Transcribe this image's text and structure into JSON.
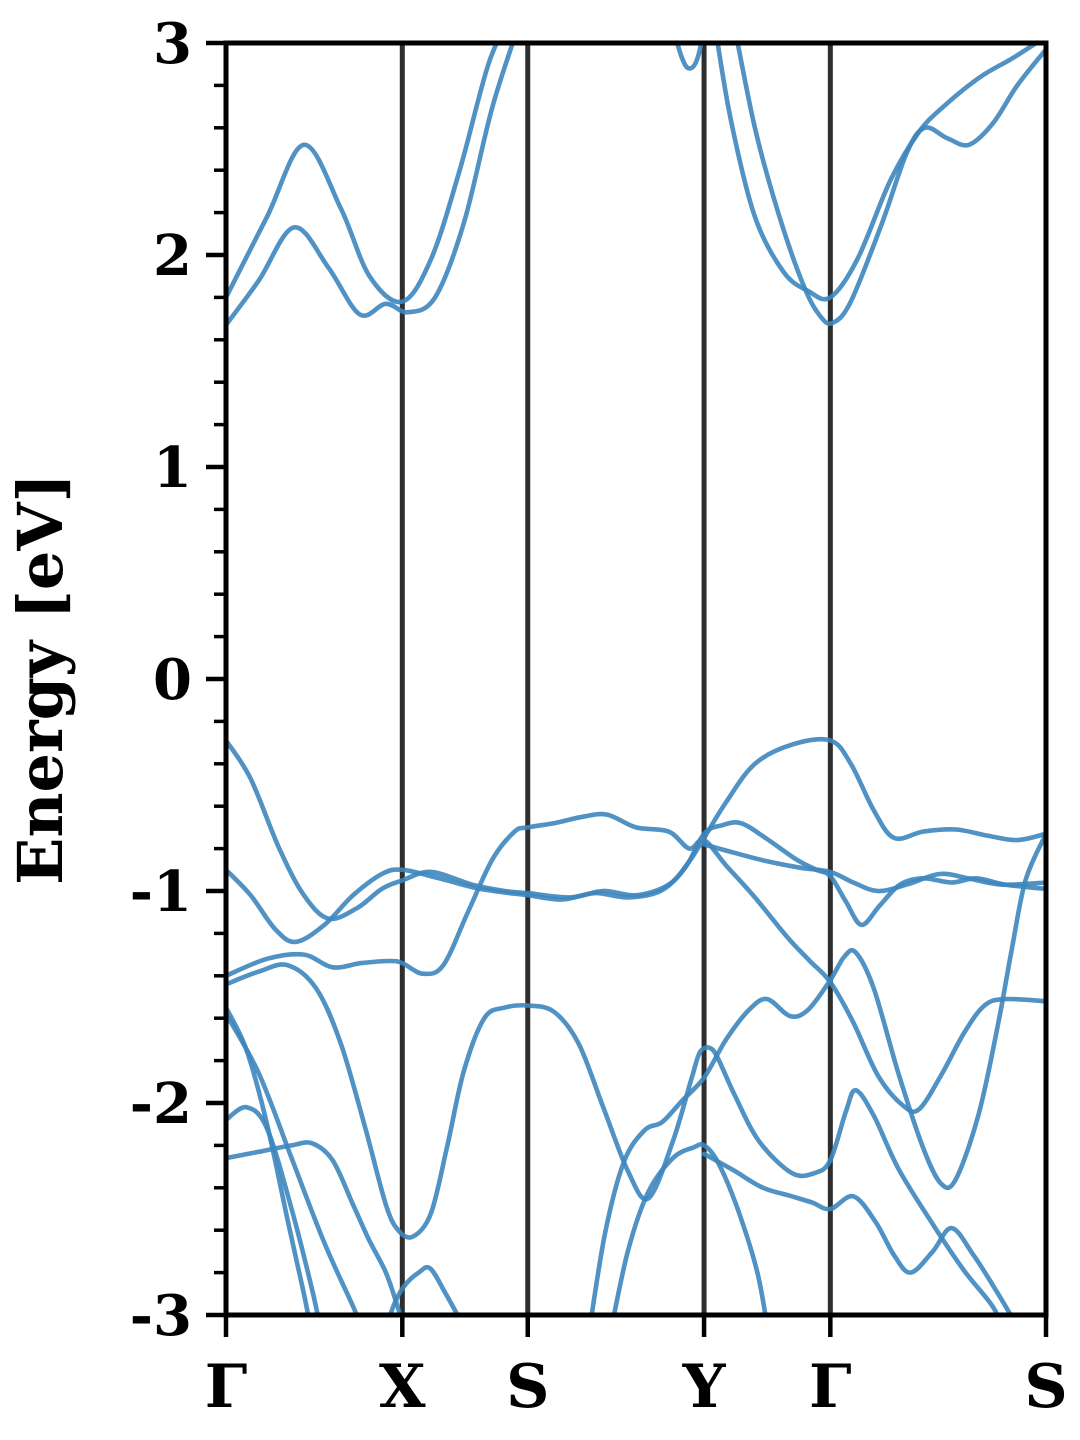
{
  "chart_data": {
    "type": "line",
    "title": "",
    "subtitle": "",
    "ylabel": "Energy [eV]",
    "xlabel": "",
    "ylim": [
      -3,
      3
    ],
    "ytick_values": [
      3,
      2,
      1,
      0,
      -1,
      -2,
      -3
    ],
    "ytick_labels": [
      "3",
      "2",
      "1",
      "0",
      "-1",
      "-2",
      "-3"
    ],
    "yminor_step": 0.2,
    "grid": "off",
    "legend": "none",
    "xticks": [
      {
        "label": "Γ",
        "u": 0.0
      },
      {
        "label": "X",
        "u": 0.215
      },
      {
        "label": "S",
        "u": 0.368
      },
      {
        "label": "Y",
        "u": 0.583
      },
      {
        "label": "Γ",
        "u": 0.737
      },
      {
        "label": "S",
        "u": 1.0
      }
    ],
    "separators_u": [
      0.215,
      0.368,
      0.583,
      0.737
    ],
    "colors": {
      "band": "#3d86be",
      "separator": "#2e2e2e",
      "axis": "#000000",
      "background": "#ffffff"
    },
    "band_opacity": 0.9,
    "description": "Electronic band structure along Γ-X-S-Y-Γ-S; energies in eV relative to Fermi level; band gap ~1.95 eV (valence max -0.29 eV at Γ, conduction min ~1.67 eV at Γ).",
    "bands": [
      {
        "name": "cond-1",
        "points": [
          [
            0,
            1.8
          ],
          [
            0.05,
            2.18
          ],
          [
            0.095,
            2.52
          ],
          [
            0.14,
            2.22
          ],
          [
            0.175,
            1.9
          ],
          [
            0.215,
            1.78
          ],
          [
            0.25,
            1.98
          ],
          [
            0.285,
            2.4
          ],
          [
            0.32,
            2.9
          ],
          [
            0.348,
            3.14
          ]
        ]
      },
      {
        "name": "cond-2",
        "points": [
          [
            0,
            1.67
          ],
          [
            0.04,
            1.88
          ],
          [
            0.083,
            2.13
          ],
          [
            0.125,
            1.94
          ],
          [
            0.163,
            1.72
          ],
          [
            0.195,
            1.77
          ],
          [
            0.222,
            1.73
          ],
          [
            0.255,
            1.8
          ],
          [
            0.29,
            2.15
          ],
          [
            0.325,
            2.7
          ],
          [
            0.362,
            3.14
          ]
        ]
      },
      {
        "name": "cond-dip-Y",
        "points": [
          [
            0.54,
            3.14
          ],
          [
            0.556,
            2.93
          ],
          [
            0.566,
            2.88
          ],
          [
            0.576,
            2.94
          ],
          [
            0.586,
            3.14
          ]
        ]
      },
      {
        "name": "cond-3",
        "points": [
          [
            0.594,
            3.14
          ],
          [
            0.615,
            2.65
          ],
          [
            0.645,
            2.18
          ],
          [
            0.68,
            1.92
          ],
          [
            0.71,
            1.83
          ],
          [
            0.737,
            1.8
          ],
          [
            0.77,
            1.98
          ],
          [
            0.81,
            2.35
          ],
          [
            0.845,
            2.58
          ],
          [
            0.875,
            2.7
          ],
          [
            0.92,
            2.84
          ],
          [
            0.96,
            2.93
          ],
          [
            1.0,
            3.03
          ]
        ]
      },
      {
        "name": "cond-4",
        "points": [
          [
            0.617,
            3.14
          ],
          [
            0.645,
            2.6
          ],
          [
            0.675,
            2.18
          ],
          [
            0.705,
            1.85
          ],
          [
            0.725,
            1.71
          ],
          [
            0.74,
            1.68
          ],
          [
            0.762,
            1.78
          ],
          [
            0.8,
            2.15
          ],
          [
            0.83,
            2.48
          ],
          [
            0.852,
            2.6
          ],
          [
            0.88,
            2.55
          ],
          [
            0.906,
            2.52
          ],
          [
            0.935,
            2.62
          ],
          [
            0.965,
            2.8
          ],
          [
            1.0,
            2.97
          ]
        ]
      },
      {
        "name": "val-1",
        "points": [
          [
            0,
            -0.29
          ],
          [
            0.03,
            -0.47
          ],
          [
            0.065,
            -0.8
          ],
          [
            0.095,
            -1.02
          ],
          [
            0.125,
            -1.13
          ],
          [
            0.16,
            -1.08
          ],
          [
            0.19,
            -0.99
          ],
          [
            0.215,
            -0.95
          ],
          [
            0.25,
            -0.91
          ],
          [
            0.3,
            -0.97
          ],
          [
            0.34,
            -1.0
          ],
          [
            0.368,
            -1.01
          ],
          [
            0.42,
            -1.03
          ],
          [
            0.46,
            -1.0
          ],
          [
            0.5,
            -1.02
          ],
          [
            0.54,
            -0.97
          ],
          [
            0.565,
            -0.86
          ],
          [
            0.583,
            -0.75
          ],
          [
            0.61,
            -0.58
          ],
          [
            0.645,
            -0.4
          ],
          [
            0.69,
            -0.31
          ],
          [
            0.737,
            -0.29
          ],
          [
            0.762,
            -0.4
          ],
          [
            0.79,
            -0.62
          ],
          [
            0.815,
            -0.75
          ],
          [
            0.85,
            -0.72
          ],
          [
            0.89,
            -0.71
          ],
          [
            0.93,
            -0.74
          ],
          [
            0.965,
            -0.76
          ],
          [
            1.0,
            -0.73
          ]
        ]
      },
      {
        "name": "val-2",
        "points": [
          [
            0,
            -0.9
          ],
          [
            0.03,
            -1.02
          ],
          [
            0.06,
            -1.18
          ],
          [
            0.085,
            -1.24
          ],
          [
            0.12,
            -1.16
          ],
          [
            0.155,
            -1.02
          ],
          [
            0.19,
            -0.92
          ],
          [
            0.215,
            -0.9
          ],
          [
            0.26,
            -0.94
          ],
          [
            0.31,
            -0.99
          ],
          [
            0.368,
            -1.02
          ],
          [
            0.41,
            -1.04
          ],
          [
            0.45,
            -1.01
          ],
          [
            0.49,
            -1.03
          ],
          [
            0.53,
            -1.0
          ],
          [
            0.56,
            -0.89
          ],
          [
            0.583,
            -0.73
          ],
          [
            0.605,
            -0.69
          ],
          [
            0.628,
            -0.68
          ],
          [
            0.658,
            -0.75
          ],
          [
            0.695,
            -0.85
          ],
          [
            0.72,
            -0.9
          ],
          [
            0.737,
            -0.93
          ],
          [
            0.756,
            -1.05
          ],
          [
            0.775,
            -1.16
          ],
          [
            0.797,
            -1.07
          ],
          [
            0.822,
            -0.97
          ],
          [
            0.85,
            -0.94
          ],
          [
            0.885,
            -0.96
          ],
          [
            0.915,
            -0.94
          ],
          [
            0.95,
            -0.97
          ],
          [
            1.0,
            -0.99
          ]
        ]
      },
      {
        "name": "val-3",
        "points": [
          [
            0.583,
            -0.78
          ],
          [
            0.62,
            -0.82
          ],
          [
            0.66,
            -0.86
          ],
          [
            0.7,
            -0.89
          ],
          [
            0.737,
            -0.91
          ],
          [
            0.765,
            -0.96
          ],
          [
            0.795,
            -1.0
          ],
          [
            0.83,
            -0.97
          ],
          [
            0.87,
            -0.92
          ],
          [
            0.905,
            -0.94
          ],
          [
            0.945,
            -0.97
          ],
          [
            1.0,
            -0.96
          ]
        ]
      },
      {
        "name": "val-4",
        "points": [
          [
            0,
            -1.4
          ],
          [
            0.05,
            -1.32
          ],
          [
            0.095,
            -1.3
          ],
          [
            0.13,
            -1.36
          ],
          [
            0.165,
            -1.34
          ],
          [
            0.2,
            -1.33
          ],
          [
            0.215,
            -1.34
          ],
          [
            0.24,
            -1.39
          ],
          [
            0.265,
            -1.35
          ],
          [
            0.295,
            -1.1
          ],
          [
            0.325,
            -0.85
          ],
          [
            0.352,
            -0.72
          ],
          [
            0.368,
            -0.7
          ],
          [
            0.4,
            -0.68
          ],
          [
            0.435,
            -0.65
          ],
          [
            0.465,
            -0.64
          ],
          [
            0.5,
            -0.7
          ],
          [
            0.54,
            -0.72
          ],
          [
            0.565,
            -0.8
          ],
          [
            0.583,
            -0.76
          ],
          [
            0.61,
            -0.88
          ],
          [
            0.645,
            -1.03
          ],
          [
            0.685,
            -1.22
          ],
          [
            0.712,
            -1.33
          ],
          [
            0.737,
            -1.43
          ],
          [
            0.765,
            -1.62
          ],
          [
            0.795,
            -1.87
          ],
          [
            0.825,
            -2.01
          ],
          [
            0.845,
            -2.03
          ],
          [
            0.872,
            -1.87
          ],
          [
            0.9,
            -1.67
          ],
          [
            0.925,
            -1.54
          ],
          [
            0.95,
            -1.51
          ],
          [
            1.0,
            -1.52
          ]
        ]
      },
      {
        "name": "val-5",
        "points": [
          [
            0,
            -1.44
          ],
          [
            0.04,
            -1.38
          ],
          [
            0.075,
            -1.35
          ],
          [
            0.11,
            -1.46
          ],
          [
            0.14,
            -1.72
          ],
          [
            0.17,
            -2.12
          ],
          [
            0.195,
            -2.48
          ],
          [
            0.21,
            -2.6
          ],
          [
            0.228,
            -2.63
          ],
          [
            0.25,
            -2.52
          ],
          [
            0.27,
            -2.2
          ],
          [
            0.29,
            -1.85
          ],
          [
            0.315,
            -1.6
          ],
          [
            0.34,
            -1.55
          ],
          [
            0.368,
            -1.54
          ],
          [
            0.4,
            -1.57
          ],
          [
            0.43,
            -1.72
          ],
          [
            0.46,
            -2.02
          ],
          [
            0.49,
            -2.32
          ],
          [
            0.515,
            -2.45
          ],
          [
            0.545,
            -2.18
          ],
          [
            0.568,
            -1.88
          ],
          [
            0.578,
            -1.76
          ],
          [
            0.59,
            -1.74
          ],
          [
            0.6,
            -1.79
          ],
          [
            0.62,
            -1.96
          ],
          [
            0.65,
            -2.18
          ],
          [
            0.69,
            -2.33
          ],
          [
            0.718,
            -2.33
          ],
          [
            0.737,
            -2.27
          ],
          [
            0.756,
            -2.04
          ],
          [
            0.768,
            -1.94
          ],
          [
            0.79,
            -2.06
          ],
          [
            0.82,
            -2.31
          ],
          [
            0.86,
            -2.56
          ],
          [
            0.9,
            -2.79
          ],
          [
            0.935,
            -2.96
          ],
          [
            0.952,
            -3.1
          ]
        ]
      },
      {
        "name": "val-6",
        "points": [
          [
            0.442,
            -3.1
          ],
          [
            0.462,
            -2.62
          ],
          [
            0.485,
            -2.28
          ],
          [
            0.51,
            -2.13
          ],
          [
            0.532,
            -2.09
          ],
          [
            0.556,
            -1.99
          ],
          [
            0.583,
            -1.88
          ],
          [
            0.61,
            -1.7
          ],
          [
            0.638,
            -1.56
          ],
          [
            0.66,
            -1.51
          ],
          [
            0.688,
            -1.59
          ],
          [
            0.71,
            -1.56
          ],
          [
            0.737,
            -1.42
          ],
          [
            0.754,
            -1.31
          ],
          [
            0.768,
            -1.29
          ],
          [
            0.79,
            -1.46
          ],
          [
            0.82,
            -1.86
          ],
          [
            0.85,
            -2.21
          ],
          [
            0.872,
            -2.38
          ],
          [
            0.89,
            -2.36
          ],
          [
            0.918,
            -2.05
          ],
          [
            0.942,
            -1.62
          ],
          [
            0.958,
            -1.28
          ],
          [
            0.975,
            -0.95
          ],
          [
            1.0,
            -0.73
          ]
        ]
      },
      {
        "name": "val-7",
        "points": [
          [
            0.468,
            -3.1
          ],
          [
            0.49,
            -2.7
          ],
          [
            0.515,
            -2.42
          ],
          [
            0.545,
            -2.26
          ],
          [
            0.57,
            -2.21
          ],
          [
            0.583,
            -2.2
          ],
          [
            0.6,
            -2.28
          ],
          [
            0.624,
            -2.5
          ],
          [
            0.648,
            -2.8
          ],
          [
            0.662,
            -3.1
          ]
        ]
      },
      {
        "name": "val-8",
        "points": [
          [
            0.583,
            -2.24
          ],
          [
            0.62,
            -2.32
          ],
          [
            0.655,
            -2.4
          ],
          [
            0.69,
            -2.44
          ],
          [
            0.715,
            -2.47
          ],
          [
            0.737,
            -2.5
          ],
          [
            0.765,
            -2.44
          ],
          [
            0.792,
            -2.56
          ],
          [
            0.815,
            -2.72
          ],
          [
            0.835,
            -2.8
          ],
          [
            0.862,
            -2.7
          ],
          [
            0.885,
            -2.59
          ],
          [
            0.912,
            -2.72
          ],
          [
            0.94,
            -2.89
          ],
          [
            0.972,
            -3.1
          ]
        ]
      },
      {
        "name": "val-9",
        "points": [
          [
            0,
            -1.55
          ],
          [
            0.025,
            -1.75
          ],
          [
            0.05,
            -2.1
          ],
          [
            0.075,
            -2.55
          ],
          [
            0.095,
            -2.9
          ],
          [
            0.105,
            -3.1
          ]
        ]
      },
      {
        "name": "val-10",
        "points": [
          [
            0,
            -1.58
          ],
          [
            0.04,
            -1.86
          ],
          [
            0.08,
            -2.26
          ],
          [
            0.12,
            -2.66
          ],
          [
            0.155,
            -2.96
          ],
          [
            0.17,
            -3.1
          ]
        ]
      },
      {
        "name": "val-11",
        "points": [
          [
            0,
            -2.08
          ],
          [
            0.025,
            -2.02
          ],
          [
            0.05,
            -2.12
          ],
          [
            0.08,
            -2.5
          ],
          [
            0.105,
            -2.88
          ],
          [
            0.117,
            -3.1
          ]
        ]
      },
      {
        "name": "val-12",
        "points": [
          [
            0,
            -2.26
          ],
          [
            0.04,
            -2.23
          ],
          [
            0.08,
            -2.2
          ],
          [
            0.105,
            -2.19
          ],
          [
            0.13,
            -2.27
          ],
          [
            0.155,
            -2.48
          ],
          [
            0.175,
            -2.65
          ],
          [
            0.195,
            -2.8
          ],
          [
            0.21,
            -2.97
          ],
          [
            0.22,
            -3.1
          ]
        ]
      },
      {
        "name": "val-13",
        "points": [
          [
            0.192,
            -3.1
          ],
          [
            0.205,
            -2.95
          ],
          [
            0.218,
            -2.86
          ],
          [
            0.235,
            -2.8
          ],
          [
            0.249,
            -2.78
          ],
          [
            0.268,
            -2.9
          ],
          [
            0.285,
            -3.02
          ],
          [
            0.295,
            -3.1
          ]
        ]
      }
    ]
  }
}
